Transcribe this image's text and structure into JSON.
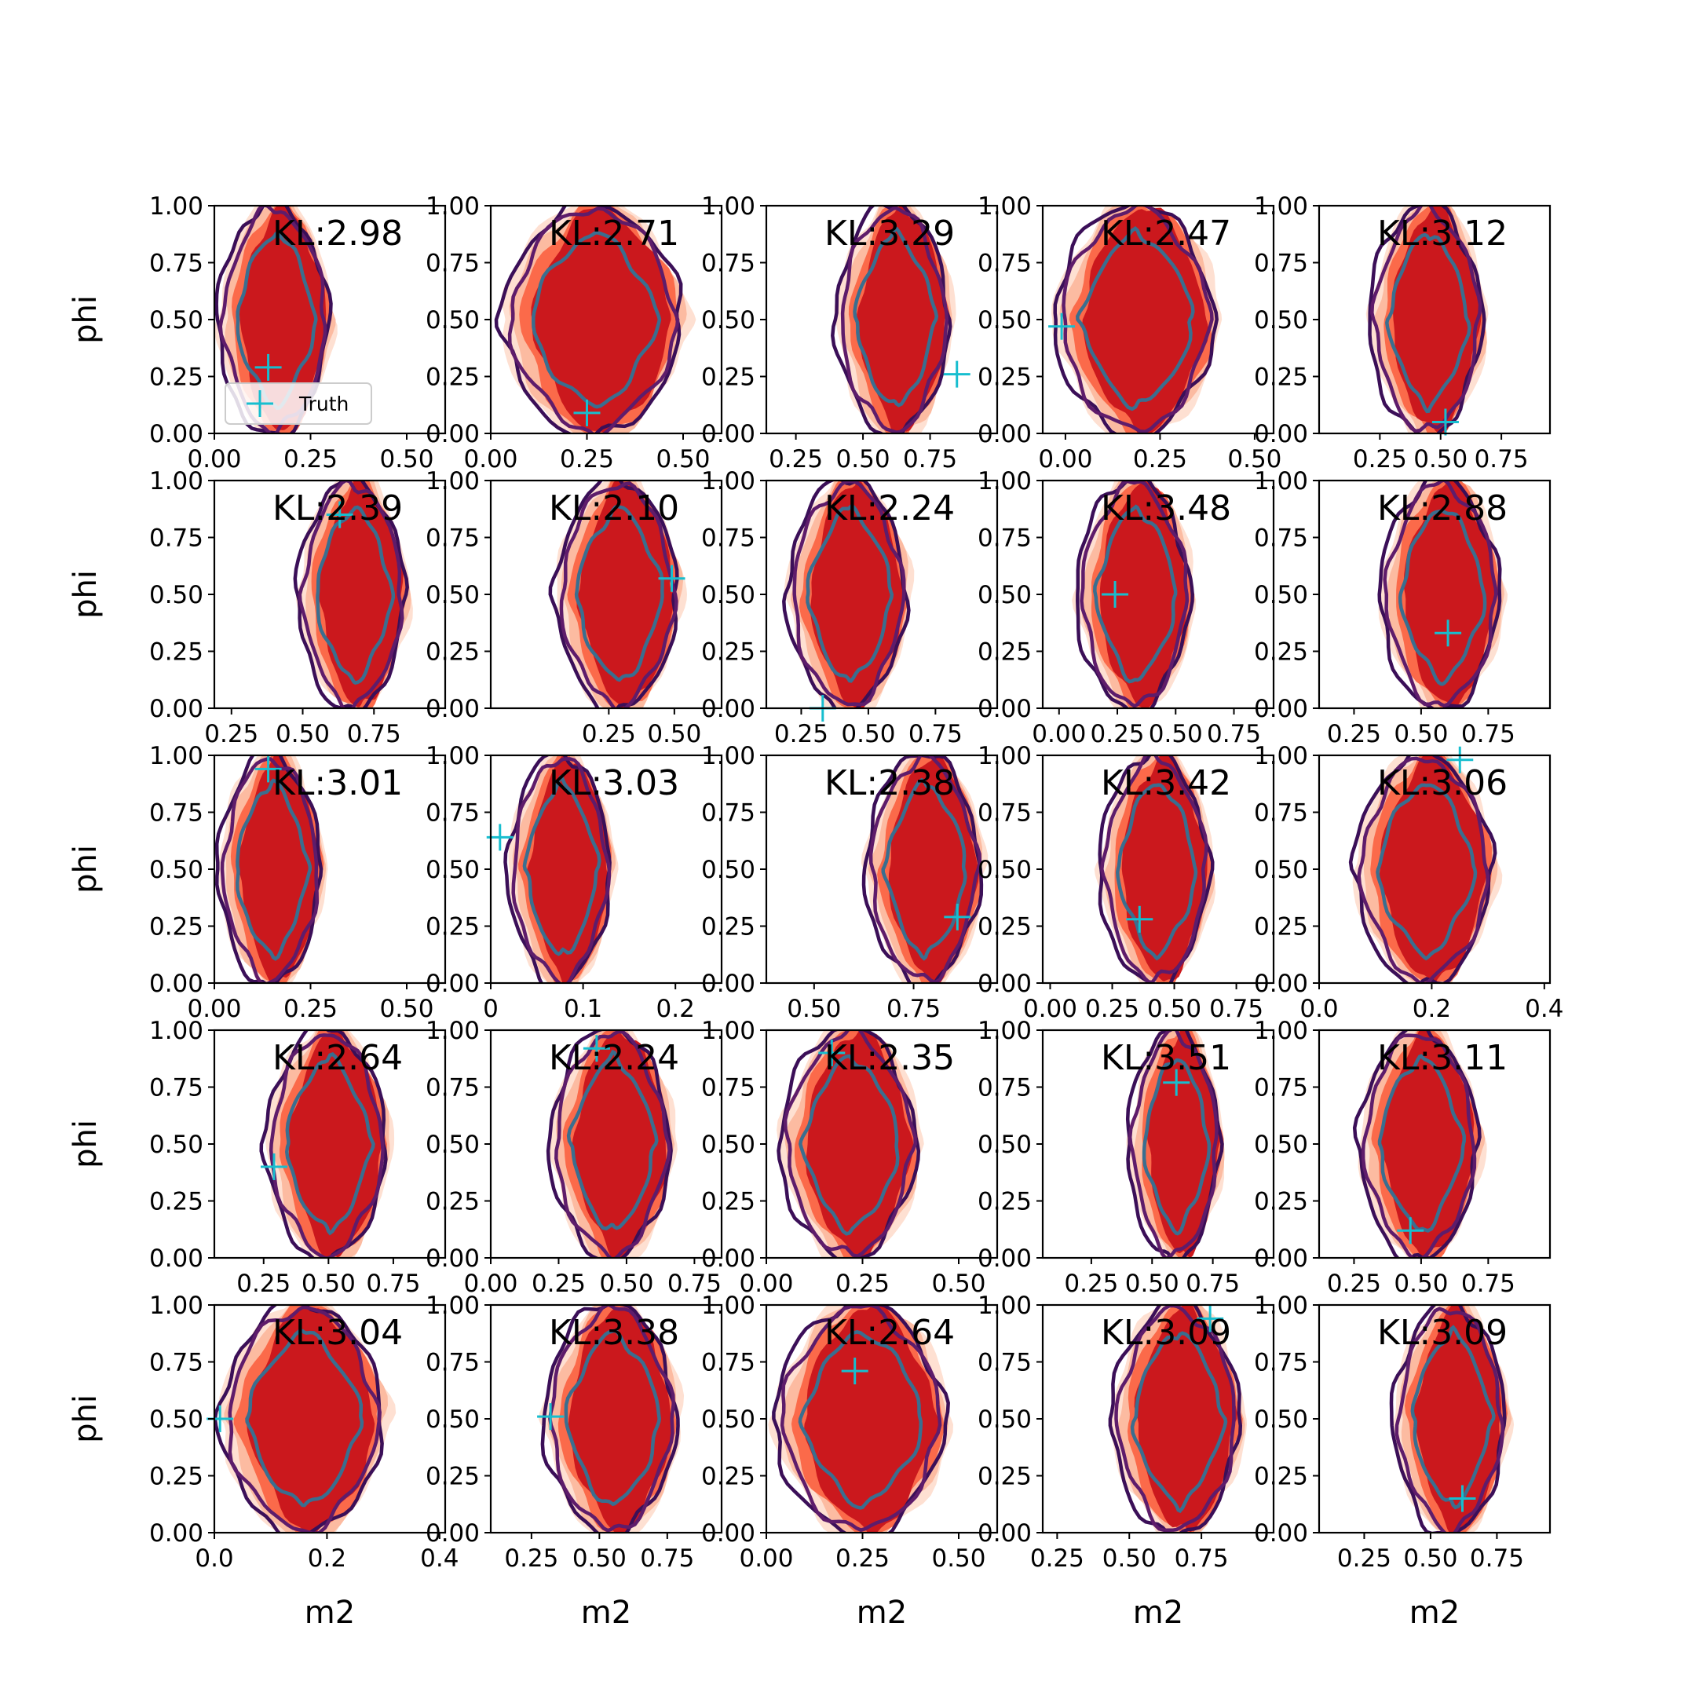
{
  "colors": {
    "fill_outer": "#fee0d2",
    "fill_mid": "#fcbba1",
    "fill_mid2": "#fb6a4a",
    "fill_inner": "#cb181d",
    "line_outer": "#3b0f58",
    "line_mid": "#5e1c6b",
    "line_inner": "#3a6e8f",
    "truth": "#17becf"
  },
  "chart_data": {
    "type": "contour-grid",
    "rows": 5,
    "cols": 5,
    "xlabel": "m2",
    "ylabel": "phi",
    "legend": {
      "label": "Truth",
      "panel": 0,
      "placement": "lower-left"
    },
    "panels": [
      {
        "kl": "KL:2.98",
        "xlim": [
          0.0,
          0.6
        ],
        "xticks": [
          "0.00",
          "0.25",
          "0.50"
        ],
        "center": [
          0.16,
          0.5
        ],
        "rx": 0.13,
        "truth": [
          0.14,
          0.29
        ]
      },
      {
        "kl": "KL:2.71",
        "xlim": [
          0.0,
          0.6
        ],
        "xticks": [
          "0.00",
          "0.25",
          "0.50"
        ],
        "center": [
          0.27,
          0.5
        ],
        "rx": 0.21,
        "truth": [
          0.25,
          0.09
        ]
      },
      {
        "kl": "KL:3.29",
        "xlim": [
          0.14,
          1.0
        ],
        "xticks": [
          "0.25",
          "0.50",
          "0.75"
        ],
        "center": [
          0.62,
          0.5
        ],
        "rx": 0.19,
        "truth": [
          0.85,
          0.26
        ]
      },
      {
        "kl": "KL:2.47",
        "xlim": [
          -0.06,
          0.55
        ],
        "xticks": [
          "0.00",
          "0.25",
          "0.50"
        ],
        "center": [
          0.19,
          0.5
        ],
        "rx": 0.19,
        "truth": [
          -0.01,
          0.47
        ]
      },
      {
        "kl": "KL:3.12",
        "xlim": [
          0.0,
          0.95
        ],
        "xticks": [
          "0.25",
          "0.50",
          "0.75"
        ],
        "center": [
          0.45,
          0.5
        ],
        "rx": 0.21,
        "truth": [
          0.52,
          0.05
        ]
      },
      {
        "kl": "KL:2.39",
        "xlim": [
          0.19,
          1.0
        ],
        "xticks": [
          "0.25",
          "0.50",
          "0.75"
        ],
        "center": [
          0.68,
          0.5
        ],
        "rx": 0.17,
        "truth": [
          0.63,
          0.85
        ]
      },
      {
        "kl": "KL:2.10",
        "xlim": [
          -0.2,
          0.68
        ],
        "xticks": [
          "0.25",
          "0.50"
        ],
        "center": [
          0.29,
          0.5
        ],
        "rx": 0.21,
        "truth": [
          0.49,
          0.57
        ]
      },
      {
        "kl": "KL:2.24",
        "xlim": [
          0.12,
          0.98
        ],
        "xticks": [
          "0.25",
          "0.50",
          "0.75"
        ],
        "center": [
          0.43,
          0.5
        ],
        "rx": 0.2,
        "truth": [
          0.33,
          0.0
        ]
      },
      {
        "kl": "KL:3.48",
        "xlim": [
          -0.07,
          0.92
        ],
        "xticks": [
          "0.00",
          "0.25",
          "0.50",
          "0.75"
        ],
        "center": [
          0.33,
          0.5
        ],
        "rx": 0.22,
        "truth": [
          0.24,
          0.5
        ]
      },
      {
        "kl": "KL:2.88",
        "xlim": [
          0.12,
          0.98
        ],
        "xticks": [
          "0.25",
          "0.50",
          "0.75"
        ],
        "center": [
          0.58,
          0.5
        ],
        "rx": 0.2,
        "truth": [
          0.6,
          0.33
        ]
      },
      {
        "kl": "KL:3.01",
        "xlim": [
          0.0,
          0.6
        ],
        "xticks": [
          "0.00",
          "0.25",
          "0.50"
        ],
        "center": [
          0.15,
          0.5
        ],
        "rx": 0.12,
        "truth": [
          0.14,
          0.94
        ]
      },
      {
        "kl": "KL:3.03",
        "xlim": [
          0.0,
          0.25
        ],
        "xticks": [
          "0",
          "0.1",
          "0.2"
        ],
        "center": [
          0.077,
          0.5
        ],
        "rx": 0.05,
        "truth": [
          0.01,
          0.64
        ]
      },
      {
        "kl": "KL:2.38",
        "xlim": [
          0.38,
          0.96
        ],
        "xticks": [
          "0.50",
          "0.75"
        ],
        "center": [
          0.78,
          0.5
        ],
        "rx": 0.13,
        "truth": [
          0.86,
          0.29
        ]
      },
      {
        "kl": "KL:3.42",
        "xlim": [
          -0.03,
          0.9
        ],
        "xticks": [
          "0.00",
          "0.25",
          "0.50",
          "0.75"
        ],
        "center": [
          0.43,
          0.5
        ],
        "rx": 0.2,
        "truth": [
          0.36,
          0.28
        ]
      },
      {
        "kl": "KL:3.06",
        "xlim": [
          0.0,
          0.41
        ],
        "xticks": [
          "0.0",
          "0.2",
          "0.4"
        ],
        "center": [
          0.19,
          0.5
        ],
        "rx": 0.11,
        "truth": [
          0.25,
          0.98
        ]
      },
      {
        "kl": "KL:2.64",
        "xlim": [
          0.06,
          0.95
        ],
        "xticks": [
          "0.25",
          "0.50",
          "0.75"
        ],
        "center": [
          0.5,
          0.5
        ],
        "rx": 0.21,
        "truth": [
          0.29,
          0.4
        ]
      },
      {
        "kl": "KL:2.24",
        "xlim": [
          0.0,
          0.85
        ],
        "xticks": [
          "0.00",
          "0.25",
          "0.50",
          "0.75"
        ],
        "center": [
          0.45,
          0.5
        ],
        "rx": 0.2,
        "truth": [
          0.39,
          0.92
        ]
      },
      {
        "kl": "KL:2.35",
        "xlim": [
          0.0,
          0.6
        ],
        "xticks": [
          "0.00",
          "0.25",
          "0.50"
        ],
        "center": [
          0.22,
          0.5
        ],
        "rx": 0.16,
        "truth": [
          0.17,
          0.9
        ]
      },
      {
        "kl": "KL:3.51",
        "xlim": [
          0.05,
          1.0
        ],
        "xticks": [
          "0.25",
          "0.50",
          "0.75"
        ],
        "center": [
          0.6,
          0.5
        ],
        "rx": 0.17,
        "truth": [
          0.6,
          0.77
        ]
      },
      {
        "kl": "KL:3.11",
        "xlim": [
          0.12,
          0.98
        ],
        "xticks": [
          "0.25",
          "0.50",
          "0.75"
        ],
        "center": [
          0.5,
          0.5
        ],
        "rx": 0.2,
        "truth": [
          0.46,
          0.12
        ]
      },
      {
        "kl": "KL:3.04",
        "xlim": [
          0.0,
          0.41
        ],
        "xticks": [
          "0.0",
          "0.2",
          "0.4"
        ],
        "center": [
          0.16,
          0.5
        ],
        "rx": 0.13,
        "truth": [
          0.01,
          0.5
        ]
      },
      {
        "kl": "KL:3.38",
        "xlim": [
          0.1,
          0.95
        ],
        "xticks": [
          "0.25",
          "0.50",
          "0.75"
        ],
        "center": [
          0.55,
          0.5
        ],
        "rx": 0.22,
        "truth": [
          0.32,
          0.51
        ]
      },
      {
        "kl": "KL:2.64",
        "xlim": [
          0.0,
          0.6
        ],
        "xticks": [
          "0.00",
          "0.25",
          "0.50"
        ],
        "center": [
          0.25,
          0.5
        ],
        "rx": 0.2,
        "truth": [
          0.23,
          0.71
        ]
      },
      {
        "kl": "KL:3.09",
        "xlim": [
          0.2,
          1.0
        ],
        "xticks": [
          "0.25",
          "0.50",
          "0.75"
        ],
        "center": [
          0.67,
          0.5
        ],
        "rx": 0.2,
        "truth": [
          0.78,
          0.94
        ]
      },
      {
        "kl": "KL:3.09",
        "xlim": [
          0.08,
          0.95
        ],
        "xticks": [
          "0.25",
          "0.50",
          "0.75"
        ],
        "center": [
          0.58,
          0.5
        ],
        "rx": 0.19,
        "truth": [
          0.62,
          0.15
        ]
      }
    ]
  }
}
